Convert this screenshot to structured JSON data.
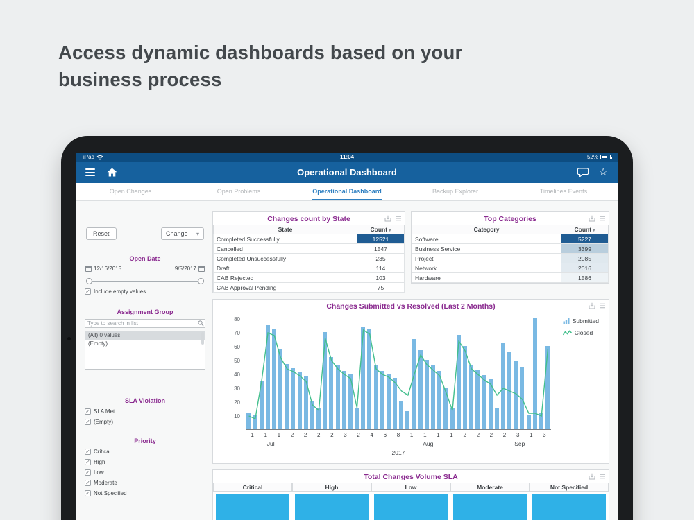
{
  "heading": "Access dynamic dashboards based on your business process",
  "colors": {
    "status_blue": "#0d4d82",
    "nav_blue": "#16619e",
    "accent_purple": "#8a2a8f",
    "tab_blue": "#2e7fc1",
    "bar_blue": "#7ab9e3",
    "line_green": "#43bf8d",
    "highlight_blue": "#1f5c93",
    "sla_bar_blue": "#2fb1e7"
  },
  "status_bar": {
    "device": "iPad",
    "time": "11:04",
    "battery": "52%"
  },
  "nav": {
    "title": "Operational Dashboard"
  },
  "tabs": [
    {
      "label": "Open Changes",
      "active": false
    },
    {
      "label": "Open Problems",
      "active": false
    },
    {
      "label": "Operational Dashboard",
      "active": true
    },
    {
      "label": "Backup Explorer",
      "active": false
    },
    {
      "label": "Timelines Events",
      "active": false
    }
  ],
  "filters": {
    "reset_label": "Reset",
    "breakdown_label": "Change",
    "open_date": {
      "title": "Open Date",
      "start": "12/16/2015",
      "end": "9/5/2017",
      "include_empty_label": "Include empty values",
      "include_empty_checked": true
    },
    "assignment_group": {
      "title": "Assignment Group",
      "search_placeholder": "Type to search in list",
      "options": [
        "(All) 0 values",
        "(Empty)"
      ],
      "selected_index": 0
    },
    "sla_violation": {
      "title": "SLA Violation",
      "options": [
        {
          "label": "SLA Met",
          "checked": true
        },
        {
          "label": "(Empty)",
          "checked": true
        }
      ]
    },
    "priority": {
      "title": "Priority",
      "options": [
        {
          "label": "Critical",
          "checked": true
        },
        {
          "label": "High",
          "checked": true
        },
        {
          "label": "Low",
          "checked": true
        },
        {
          "label": "Moderate",
          "checked": true
        },
        {
          "label": "Not Specified",
          "checked": true
        }
      ]
    }
  },
  "widgets": {
    "changes_by_state": {
      "title": "Changes count by State",
      "columns": [
        "State",
        "Count"
      ],
      "rows": [
        {
          "label": "Completed Successfully",
          "value": "12521",
          "bg": "#1f5c93",
          "fg": "#ffffff"
        },
        {
          "label": "Cancelled",
          "value": "1547",
          "bg": "",
          "fg": ""
        },
        {
          "label": "Completed Unsuccessfully",
          "value": "235",
          "bg": "",
          "fg": ""
        },
        {
          "label": "Draft",
          "value": "114",
          "bg": "",
          "fg": ""
        },
        {
          "label": "CAB Rejected",
          "value": "103",
          "bg": "",
          "fg": ""
        },
        {
          "label": "CAB Approval Pending",
          "value": "75",
          "bg": "",
          "fg": ""
        }
      ]
    },
    "top_categories": {
      "title": "Top Categories",
      "columns": [
        "Category",
        "Count"
      ],
      "rows": [
        {
          "label": "Software",
          "value": "5227",
          "bg": "#1f5c93",
          "fg": "#ffffff"
        },
        {
          "label": "Business Service",
          "value": "3399",
          "bg": "#b9cedd",
          "fg": "#3c4044"
        },
        {
          "label": "Project",
          "value": "2085",
          "bg": "#dfe8ee",
          "fg": "#3c4044"
        },
        {
          "label": "Network",
          "value": "2016",
          "bg": "#e2eaf0",
          "fg": "#3c4044"
        },
        {
          "label": "Hardware",
          "value": "1586",
          "bg": "#eef3f6",
          "fg": "#3c4044"
        }
      ]
    },
    "sla": {
      "title": "Total Changes Volume SLA",
      "columns": [
        "Critical",
        "High",
        "Low",
        "Moderate",
        "Not Specified"
      ]
    }
  },
  "chart_data": {
    "type": "bar+line",
    "title": "Changes Submitted vs Resolved (Last 2 Months)",
    "ylim": [
      0,
      80
    ],
    "yticks": [
      10,
      20,
      30,
      40,
      50,
      60,
      70,
      80
    ],
    "legend": [
      {
        "name": "Submitted",
        "type": "bar",
        "color": "#7ab9e3"
      },
      {
        "name": "Closed",
        "type": "line",
        "color": "#43bf8d"
      }
    ],
    "submitted": [
      12,
      10,
      35,
      75,
      72,
      58,
      47,
      44,
      41,
      38,
      20,
      15,
      70,
      52,
      46,
      42,
      40,
      15,
      74,
      72,
      46,
      42,
      40,
      37,
      20,
      13,
      65,
      57,
      50,
      46,
      42,
      30,
      15,
      68,
      60,
      46,
      43,
      39,
      36,
      15,
      62,
      56,
      49,
      45,
      10,
      80,
      12,
      60
    ],
    "closed": [
      10,
      8,
      35,
      70,
      68,
      52,
      44,
      42,
      39,
      35,
      18,
      14,
      66,
      50,
      44,
      40,
      37,
      16,
      72,
      69,
      44,
      40,
      38,
      34,
      28,
      25,
      40,
      54,
      47,
      43,
      39,
      27,
      14,
      64,
      57,
      44,
      40,
      36,
      33,
      25,
      30,
      28,
      26,
      22,
      12,
      12,
      10,
      58
    ],
    "xtick_labels": [
      "1",
      "1",
      "1",
      "2",
      "2",
      "2",
      "2",
      "3",
      "2",
      "4",
      "6",
      "8",
      "1",
      "1",
      "1",
      "1",
      "2",
      "2",
      "2",
      "2",
      "3",
      "1",
      "3"
    ],
    "month_labels": [
      "Jul",
      "Aug",
      "Sep"
    ],
    "year_label": "2017"
  }
}
